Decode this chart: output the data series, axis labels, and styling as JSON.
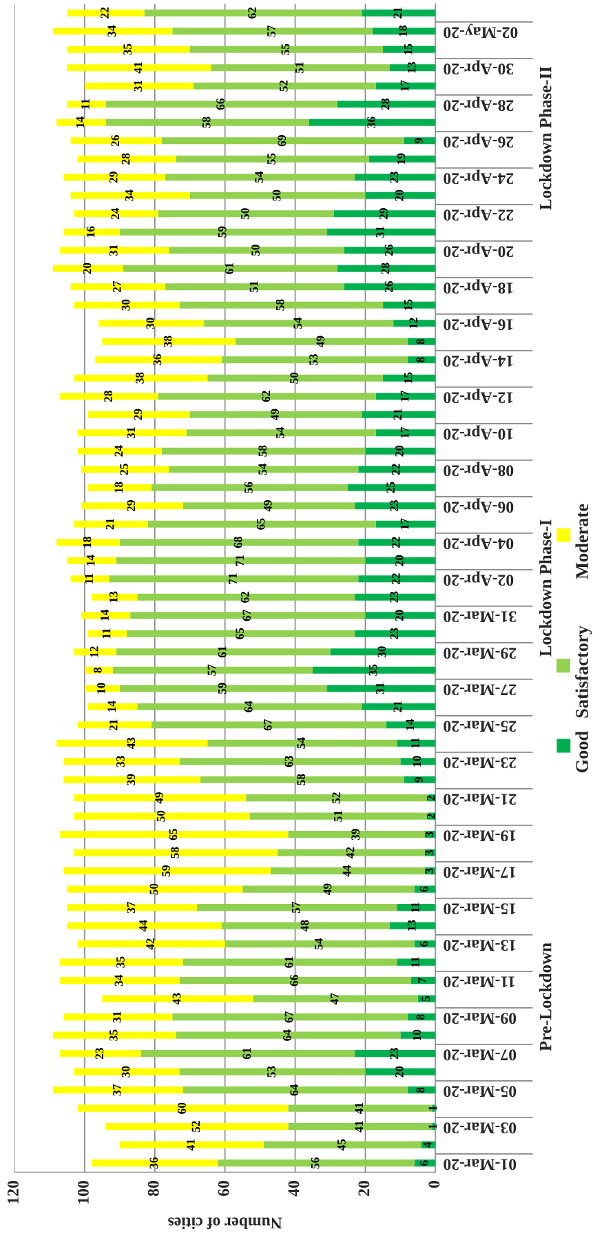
{
  "chart_data": {
    "type": "bar",
    "orientation": "horizontal",
    "stacked": true,
    "xlabel": "Number of cities",
    "categories": [
      null,
      "02-May-20",
      null,
      "30-Apr-20",
      null,
      "28-Apr-20",
      null,
      "26-Apr-20",
      null,
      "24-Apr-20",
      null,
      "22-Apr-20",
      null,
      "20-Apr-20",
      null,
      "18-Apr-20",
      null,
      "16-Apr-20",
      null,
      "14-Apr-20",
      null,
      "12-Apr-20",
      null,
      "10-Apr-20",
      null,
      "08-Apr-20",
      null,
      "06-Apr-20",
      null,
      "04-Apr-20",
      null,
      "02-Apr-20",
      null,
      "31-Mar-20",
      null,
      "29-Mar-20",
      null,
      "27-Mar-20",
      null,
      "25-Mar-20",
      null,
      "23-Mar-20",
      null,
      "21-Mar-20",
      null,
      "19-Mar-20",
      null,
      "17-Mar-20",
      null,
      "15-Mar-20",
      null,
      "13-Mar-20",
      null,
      "11-Mar-20",
      null,
      "09-Mar-20",
      null,
      "07-Mar-20",
      null,
      "05-Mar-20",
      null,
      "03-Mar-20",
      null,
      "01-Mar-20"
    ],
    "series": [
      {
        "name": "Good",
        "color": "#00b050",
        "values": [
          21,
          18,
          15,
          13,
          17,
          28,
          36,
          9,
          19,
          23,
          20,
          29,
          31,
          26,
          28,
          26,
          15,
          12,
          8,
          8,
          15,
          17,
          21,
          17,
          20,
          22,
          25,
          23,
          17,
          22,
          20,
          22,
          23,
          20,
          23,
          30,
          35,
          31,
          21,
          14,
          11,
          10,
          9,
          2,
          2,
          3,
          3,
          3,
          6,
          11,
          13,
          6,
          11,
          7,
          5,
          8,
          10,
          23,
          20,
          8,
          1,
          1,
          4,
          6
        ]
      },
      {
        "name": "Satisfactory",
        "color": "#92d050",
        "values": [
          62,
          57,
          55,
          51,
          52,
          66,
          58,
          69,
          55,
          54,
          50,
          50,
          59,
          50,
          61,
          51,
          58,
          54,
          49,
          53,
          50,
          62,
          49,
          54,
          58,
          54,
          56,
          49,
          65,
          68,
          71,
          71,
          62,
          67,
          65,
          61,
          57,
          59,
          64,
          67,
          54,
          63,
          58,
          52,
          51,
          39,
          42,
          44,
          49,
          57,
          48,
          54,
          61,
          66,
          47,
          67,
          64,
          61,
          53,
          64,
          41,
          41,
          45,
          56
        ]
      },
      {
        "name": "Moderate",
        "color": "#ffff00",
        "values": [
          22,
          34,
          35,
          41,
          31,
          11,
          14,
          26,
          28,
          29,
          34,
          24,
          16,
          31,
          20,
          27,
          30,
          30,
          38,
          36,
          38,
          28,
          29,
          31,
          24,
          25,
          18,
          29,
          21,
          18,
          14,
          11,
          13,
          14,
          11,
          12,
          8,
          10,
          14,
          21,
          43,
          33,
          39,
          49,
          50,
          65,
          58,
          59,
          50,
          37,
          44,
          42,
          35,
          34,
          43,
          31,
          35,
          23,
          30,
          37,
          60,
          52,
          41,
          36
        ]
      }
    ],
    "xlim": [
      120,
      0
    ],
    "xticks": [
      0,
      20,
      40,
      60,
      80,
      100,
      120
    ],
    "grid": "x",
    "data_labels": true,
    "legend": "right",
    "annotations": [
      "Lockdown Phase-II",
      "Lockdown Phase-I",
      "Pre-Lockdown"
    ]
  }
}
